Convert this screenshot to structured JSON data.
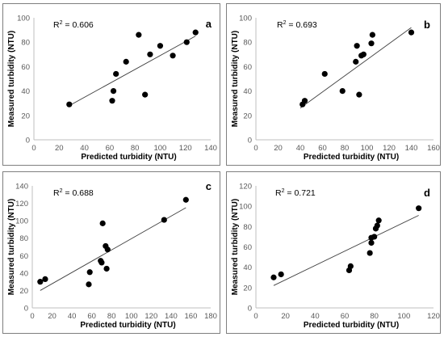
{
  "chart_data": [
    {
      "type": "scatter",
      "panel_label": "a",
      "r2_label": "R",
      "r2_sup": "2",
      "r2_value": " = 0.606",
      "xlabel": "Predicted turbidity (NTU)",
      "ylabel": "Measured turbidity (NTU)",
      "xlim": [
        0,
        140
      ],
      "ylim": [
        0,
        100
      ],
      "xticks": [
        0,
        20,
        40,
        60,
        80,
        100,
        120,
        140
      ],
      "yticks": [
        0,
        20,
        40,
        60,
        80,
        100
      ],
      "points": [
        [
          28,
          29
        ],
        [
          62,
          32
        ],
        [
          63,
          40
        ],
        [
          65,
          54
        ],
        [
          73,
          64
        ],
        [
          83,
          86
        ],
        [
          88,
          37
        ],
        [
          92,
          70
        ],
        [
          100,
          77
        ],
        [
          110,
          69
        ],
        [
          121,
          80
        ],
        [
          128,
          88
        ]
      ],
      "trendline": {
        "x": [
          28,
          128
        ],
        "y": [
          28,
          85
        ]
      }
    },
    {
      "type": "scatter",
      "panel_label": "b",
      "r2_label": "R",
      "r2_sup": "2",
      "r2_value": " = 0.693",
      "xlabel": "Predicted turbidity (NTU)",
      "ylabel": "Measured turbidity (NTU)",
      "xlim": [
        0,
        160
      ],
      "ylim": [
        0,
        100
      ],
      "xticks": [
        0,
        20,
        40,
        60,
        80,
        100,
        120,
        140,
        160
      ],
      "yticks": [
        0,
        20,
        40,
        60,
        80,
        100
      ],
      "points": [
        [
          42,
          29
        ],
        [
          44,
          32
        ],
        [
          62,
          54
        ],
        [
          78,
          40
        ],
        [
          90,
          64
        ],
        [
          91,
          77
        ],
        [
          93,
          37
        ],
        [
          95,
          69
        ],
        [
          97,
          70
        ],
        [
          104,
          79
        ],
        [
          105,
          86
        ],
        [
          140,
          88
        ]
      ],
      "trendline": {
        "x": [
          40,
          140
        ],
        "y": [
          26,
          92
        ]
      }
    },
    {
      "type": "scatter",
      "panel_label": "c",
      "r2_label": "R",
      "r2_sup": "2",
      "r2_value": " = 0.688",
      "xlabel": "Predicted turbidity (NTU)",
      "ylabel": "Measured turbidity (NTU)",
      "xlim": [
        0,
        180
      ],
      "ylim": [
        0,
        140
      ],
      "xticks": [
        0,
        20,
        40,
        60,
        80,
        100,
        120,
        140,
        160,
        180
      ],
      "yticks": [
        0,
        20,
        40,
        60,
        80,
        100,
        120,
        140
      ],
      "points": [
        [
          8,
          30
        ],
        [
          13,
          33
        ],
        [
          57,
          27
        ],
        [
          58,
          41
        ],
        [
          69,
          54
        ],
        [
          70,
          52
        ],
        [
          71,
          97
        ],
        [
          74,
          71
        ],
        [
          75,
          45
        ],
        [
          76,
          67
        ],
        [
          133,
          101
        ],
        [
          155,
          124
        ]
      ],
      "trendline": {
        "x": [
          8,
          155
        ],
        "y": [
          20,
          115
        ]
      }
    },
    {
      "type": "scatter",
      "panel_label": "d",
      "r2_label": "R",
      "r2_sup": "2",
      "r2_value": " = 0.721",
      "xlabel": "Predicted turbidity (NTU)",
      "ylabel": "Measured turbidity (NTU)",
      "xlim": [
        0,
        120
      ],
      "ylim": [
        0,
        120
      ],
      "xticks": [
        0,
        20,
        40,
        60,
        80,
        100,
        120
      ],
      "yticks": [
        0,
        20,
        40,
        60,
        80,
        100,
        120
      ],
      "points": [
        [
          12,
          30
        ],
        [
          17,
          33
        ],
        [
          63,
          37
        ],
        [
          64,
          41
        ],
        [
          77,
          54
        ],
        [
          78,
          64
        ],
        [
          78,
          69
        ],
        [
          80,
          70
        ],
        [
          81,
          78
        ],
        [
          82,
          81
        ],
        [
          83,
          86
        ],
        [
          110,
          98
        ]
      ],
      "trendline": {
        "x": [
          12,
          110
        ],
        "y": [
          22,
          91
        ]
      }
    }
  ]
}
